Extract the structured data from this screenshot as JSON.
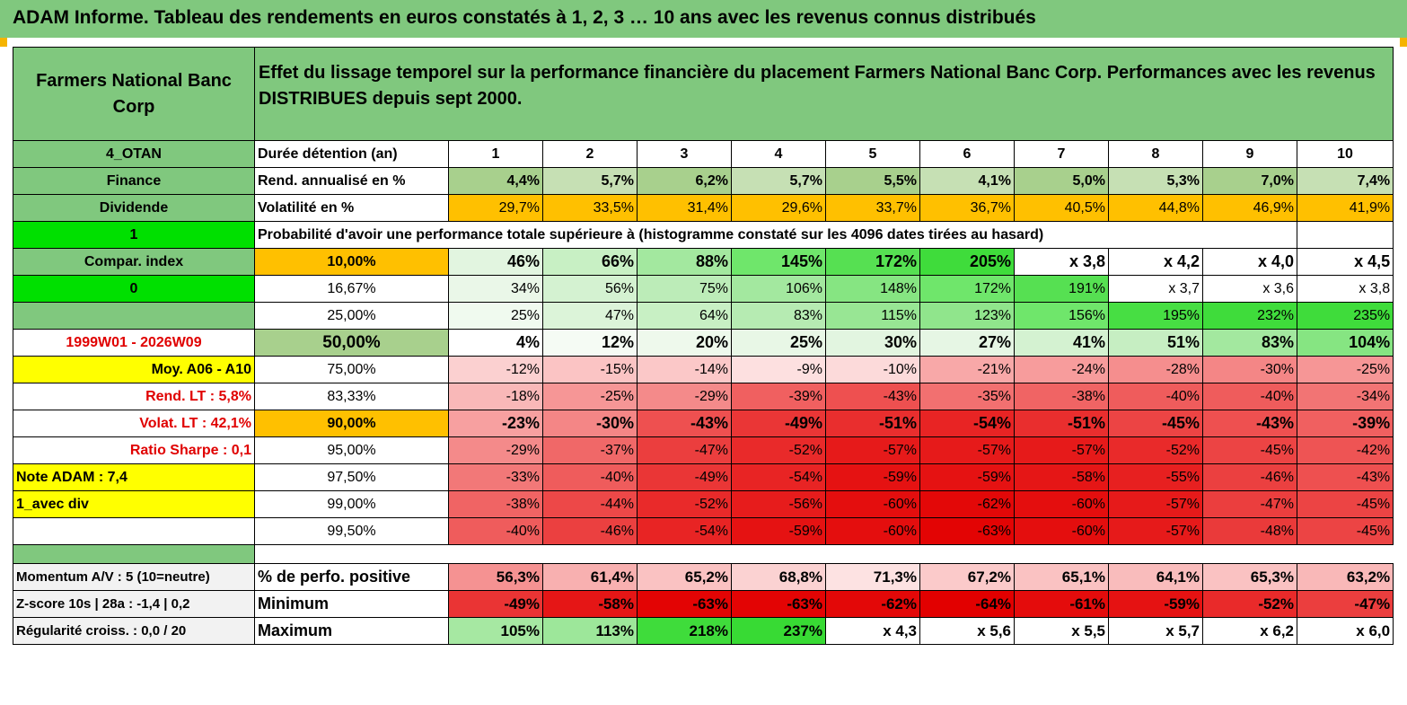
{
  "title": "ADAM Informe. Tableau des rendements en euros constatés à 1, 2, 3 … 10 ans avec les revenus connus distribués",
  "header": {
    "name": "Farmers National Banc Corp",
    "description": "Effet du lissage temporel sur la performance financière du placement Farmers National Banc Corp. Performances avec les revenus DISTRIBUES depuis sept 2000."
  },
  "left": {
    "ticker": "4_OTAN",
    "sector": "Finance",
    "type": "Dividende",
    "flag1": "1",
    "compar": "Compar. index",
    "flag2": "0",
    "empty": "",
    "period": "1999W01 - 2026W09",
    "moy": "Moy. A06 - A10",
    "rend_lt": "Rend. LT :   5,8%",
    "volat_lt": "Volat. LT :   42,1%",
    "sharpe": "Ratio Sharpe :    0,1",
    "note": "Note ADAM : 7,4",
    "avec_div": "1_avec div"
  },
  "rows": {
    "duree": {
      "label": "Durée détention (an)",
      "values": [
        "1",
        "2",
        "3",
        "4",
        "5",
        "6",
        "7",
        "8",
        "9",
        "10"
      ]
    },
    "rend": {
      "label": "Rend. annualisé en %",
      "values": [
        "4,4%",
        "5,7%",
        "6,2%",
        "5,7%",
        "5,5%",
        "4,1%",
        "5,0%",
        "5,3%",
        "7,0%",
        "7,4%"
      ]
    },
    "vol": {
      "label": "Volatilité en %",
      "values": [
        "29,7%",
        "33,5%",
        "31,4%",
        "29,6%",
        "33,7%",
        "36,7%",
        "40,5%",
        "44,8%",
        "46,9%",
        "41,9%"
      ]
    },
    "prob_title": "Probabilité d'avoir une performance totale supérieure à (histogramme constaté sur les 4096 dates tirées au hasard)"
  },
  "probabilities": [
    {
      "p": "10,00%",
      "values": [
        "46%",
        "66%",
        "88%",
        "145%",
        "172%",
        "205%",
        "x 3,8",
        "x 4,2",
        "x 4,0",
        "x 4,5"
      ],
      "colors": [
        "#e2f5e0",
        "#c8f0c4",
        "#a3e89f",
        "#6fe66b",
        "#56e052",
        "#3fdc3b",
        "#ffffff",
        "#ffffff",
        "#ffffff",
        "#ffffff"
      ]
    },
    {
      "p": "16,67%",
      "values": [
        "34%",
        "56%",
        "75%",
        "106%",
        "148%",
        "172%",
        "191%",
        "x 3,7",
        "x 3,6",
        "x 3,8"
      ],
      "colors": [
        "#eaf7e8",
        "#d4f2d1",
        "#bcecb8",
        "#a3e89f",
        "#86e582",
        "#6fe66b",
        "#56e052",
        "#ffffff",
        "#ffffff",
        "#ffffff"
      ]
    },
    {
      "p": "25,00%",
      "values": [
        "25%",
        "47%",
        "64%",
        "83%",
        "115%",
        "123%",
        "156%",
        "195%",
        "232%",
        "235%"
      ],
      "colors": [
        "#f0faef",
        "#dcf4d9",
        "#c8f0c4",
        "#b6ebb2",
        "#98e694",
        "#90e58c",
        "#6fe66b",
        "#47de43",
        "#3fdc3b",
        "#3fdc3b"
      ]
    },
    {
      "p": "50,00%",
      "values": [
        "4%",
        "12%",
        "20%",
        "25%",
        "30%",
        "27%",
        "41%",
        "51%",
        "83%",
        "104%"
      ],
      "colors": [
        "#ffffff",
        "#f5fbf4",
        "#eef9ec",
        "#e8f7e6",
        "#e2f5e0",
        "#e6f6e4",
        "#d4f2d1",
        "#c6eec2",
        "#a3e89f",
        "#86e582"
      ]
    },
    {
      "p": "75,00%",
      "values": [
        "-12%",
        "-15%",
        "-14%",
        "-9%",
        "-10%",
        "-21%",
        "-24%",
        "-28%",
        "-30%",
        "-25%"
      ],
      "colors": [
        "#fbd0d0",
        "#fbc4c4",
        "#fbc8c8",
        "#fde0e0",
        "#fcdada",
        "#f8a8a8",
        "#f79c9c",
        "#f58e8e",
        "#f48686",
        "#f69696"
      ]
    },
    {
      "p": "83,33%",
      "values": [
        "-18%",
        "-25%",
        "-29%",
        "-39%",
        "-43%",
        "-35%",
        "-38%",
        "-40%",
        "-40%",
        "-34%"
      ],
      "colors": [
        "#f9b8b8",
        "#f69696",
        "#f48a8a",
        "#f06060",
        "#ee5050",
        "#f27070",
        "#f06464",
        "#ef5c5c",
        "#ef5c5c",
        "#f27474"
      ]
    },
    {
      "p": "90,00%",
      "values": [
        "-23%",
        "-30%",
        "-43%",
        "-49%",
        "-51%",
        "-54%",
        "-51%",
        "-45%",
        "-43%",
        "-39%"
      ],
      "colors": [
        "#f7a0a0",
        "#f48686",
        "#ee5050",
        "#ea3636",
        "#e92e2e",
        "#e82424",
        "#e92e2e",
        "#ec4444",
        "#ee5050",
        "#f06060"
      ]
    },
    {
      "p": "95,00%",
      "values": [
        "-29%",
        "-37%",
        "-47%",
        "-52%",
        "-57%",
        "-57%",
        "-57%",
        "-52%",
        "-45%",
        "-42%"
      ],
      "colors": [
        "#f48a8a",
        "#f06868",
        "#eb3e3e",
        "#e92a2a",
        "#e61a1a",
        "#e61a1a",
        "#e61a1a",
        "#e92a2a",
        "#ec4444",
        "#ee5454"
      ]
    },
    {
      "p": "97,50%",
      "values": [
        "-33%",
        "-40%",
        "-49%",
        "-54%",
        "-59%",
        "-59%",
        "-58%",
        "-55%",
        "-46%",
        "-43%"
      ],
      "colors": [
        "#f27878",
        "#ef5c5c",
        "#ea3636",
        "#e82424",
        "#e51212",
        "#e51212",
        "#e51616",
        "#e72020",
        "#eb4040",
        "#ee5050"
      ]
    },
    {
      "p": "99,00%",
      "values": [
        "-38%",
        "-44%",
        "-52%",
        "-56%",
        "-60%",
        "-62%",
        "-60%",
        "-57%",
        "-47%",
        "-45%"
      ],
      "colors": [
        "#f06464",
        "#ed4848",
        "#e92a2a",
        "#e71c1c",
        "#e40e0e",
        "#e30808",
        "#e40e0e",
        "#e61a1a",
        "#eb3e3e",
        "#ec4444"
      ]
    },
    {
      "p": "99,50%",
      "values": [
        "-40%",
        "-46%",
        "-54%",
        "-59%",
        "-60%",
        "-63%",
        "-60%",
        "-57%",
        "-48%",
        "-45%"
      ],
      "colors": [
        "#ef5c5c",
        "#eb4040",
        "#e82424",
        "#e51212",
        "#e40e0e",
        "#e30404",
        "#e40e0e",
        "#e61a1a",
        "#ea3a3a",
        "#ec4444"
      ]
    }
  ],
  "bottom": {
    "momentum": "Momentum A/V : 5 (10=neutre)",
    "zscore": "Z-score 10s | 28a : -1,4 | 0,2",
    "regul": "Régularité croiss. : 0,0 / 20",
    "positive": {
      "label": "% de perfo. positive",
      "values": [
        "56,3%",
        "61,4%",
        "65,2%",
        "68,8%",
        "71,3%",
        "67,2%",
        "65,1%",
        "64,1%",
        "65,3%",
        "63,2%"
      ],
      "colors": [
        "#f59292",
        "#f8b0b0",
        "#fac2c2",
        "#fbd2d2",
        "#fde2e2",
        "#fbcaca",
        "#fac2c2",
        "#f9bcbc",
        "#fac2c2",
        "#f9b8b8"
      ]
    },
    "minimum": {
      "label": "Minimum",
      "values": [
        "-49%",
        "-58%",
        "-63%",
        "-63%",
        "-62%",
        "-64%",
        "-61%",
        "-59%",
        "-52%",
        "-47%"
      ],
      "colors": [
        "#ea3434",
        "#e51616",
        "#e30404",
        "#e30404",
        "#e30808",
        "#e20000",
        "#e40c0c",
        "#e51212",
        "#e92a2a",
        "#eb3e3e"
      ]
    },
    "maximum": {
      "label": "Maximum",
      "values": [
        "105%",
        "113%",
        "218%",
        "237%",
        "x 4,3",
        "x 5,6",
        "x 5,5",
        "x 5,7",
        "x 6,2",
        "x 6,0"
      ],
      "colors": [
        "#a6e8a2",
        "#9de79a",
        "#3fdc3b",
        "#38da34",
        "#ffffff",
        "#ffffff",
        "#ffffff",
        "#ffffff",
        "#ffffff",
        "#ffffff"
      ]
    }
  },
  "colors": {
    "header_green": "#80c87e",
    "light_green": "#a8d08d",
    "bright_green": "#00e000",
    "yellow": "#ffff00",
    "orange": "#ffc000",
    "label_red": "#e00000"
  }
}
